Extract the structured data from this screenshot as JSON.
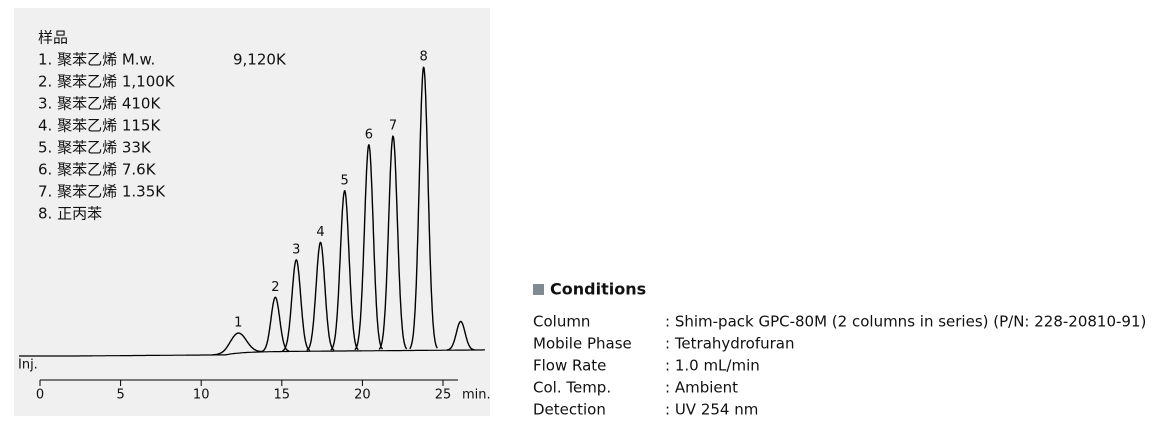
{
  "chart_data": {
    "type": "chromatogram",
    "sample": {
      "title": "样品",
      "items": [
        "1. 聚苯乙烯 M.w.",
        "2. 聚苯乙烯 1,100K",
        "3. 聚苯乙烯 410K",
        "4. 聚苯乙烯 115K",
        "5. 聚苯乙烯 33K",
        "6. 聚苯乙烯 7.6K",
        "7. 聚苯乙烯 1.35K",
        "8. 正丙苯"
      ],
      "item_note": "9,120K"
    },
    "injection_label": "Inj.",
    "xlabel": "min.",
    "xlim": [
      0,
      27.5
    ],
    "xticks": [
      0,
      5,
      10,
      15,
      20,
      25
    ],
    "ylim": [
      0,
      100
    ],
    "categories": [
      "1",
      "2",
      "3",
      "4",
      "5",
      "6",
      "7",
      "8",
      null
    ],
    "x": [
      12.3,
      14.6,
      15.9,
      17.4,
      18.9,
      20.4,
      21.9,
      23.8,
      26.1
    ],
    "values": [
      7,
      19,
      32,
      38,
      56,
      72,
      75,
      99,
      10
    ],
    "color": "#000000"
  },
  "conditions": {
    "title": "Conditions",
    "rows": [
      [
        "Column",
        ": Shim-pack GPC-80M (2 columns in series) (P/N: 228-20810-91)"
      ],
      [
        "Mobile Phase",
        ": Tetrahydrofuran"
      ],
      [
        "Flow Rate",
        ": 1.0 mL/min"
      ],
      [
        "Col. Temp.",
        ": Ambient"
      ],
      [
        "Detection",
        ": UV 254 nm"
      ]
    ]
  }
}
